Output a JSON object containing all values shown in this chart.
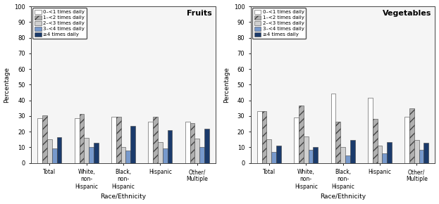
{
  "fruits": {
    "categories": [
      "Total",
      "White,\nnon-\nHispanic",
      "Black,\nnon-\nHispanic",
      "Hispanic",
      "Other/\nMultiple"
    ],
    "series": {
      "0-<1 times daily": [
        28.5,
        28.5,
        29.5,
        26.5,
        26.5
      ],
      "1-<2 times daily": [
        30.5,
        31.5,
        29.5,
        29.5,
        25.5
      ],
      "2-<3 times daily": [
        15.0,
        16.0,
        10.0,
        13.5,
        15.5
      ],
      "3-<4 times daily": [
        9.5,
        10.0,
        8.0,
        9.5,
        10.0
      ],
      ">=4 times daily": [
        16.5,
        13.0,
        23.5,
        21.0,
        22.0
      ]
    }
  },
  "vegetables": {
    "categories": [
      "Total",
      "White,\nnon-\nHispanic",
      "Black,\nnon-\nHispanic",
      "Hispanic",
      "Other/\nMultiple"
    ],
    "series": {
      "0-<1 times daily": [
        33.0,
        29.0,
        44.5,
        41.5,
        29.5
      ],
      "1-<2 times daily": [
        33.0,
        36.5,
        26.5,
        28.0,
        35.0
      ],
      "2-<3 times daily": [
        15.0,
        17.0,
        10.0,
        11.0,
        14.5
      ],
      "3-<4 times daily": [
        7.0,
        8.5,
        5.0,
        6.0,
        8.5
      ],
      ">=4 times daily": [
        11.0,
        10.0,
        14.5,
        13.5,
        13.0
      ]
    }
  },
  "legend_labels": [
    "0–<1 times daily",
    "1–<2 times daily",
    "2–<3 times daily",
    "3–<4 times daily",
    "≥4 times daily"
  ],
  "bar_styles": [
    {
      "facecolor": "#ffffff",
      "edgecolor": "#444444",
      "hatch": ""
    },
    {
      "facecolor": "#b0b0b0",
      "edgecolor": "#444444",
      "hatch": "///"
    },
    {
      "facecolor": "#d0d0d0",
      "edgecolor": "#444444",
      "hatch": ""
    },
    {
      "facecolor": "#7799cc",
      "edgecolor": "#444444",
      "hatch": ""
    },
    {
      "facecolor": "#1a3a6b",
      "edgecolor": "#444444",
      "hatch": ""
    }
  ],
  "ylim": [
    0,
    100
  ],
  "yticks": [
    0,
    10,
    20,
    30,
    40,
    50,
    60,
    70,
    80,
    90,
    100
  ],
  "ylabel": "Percentage",
  "xlabel": "Race/Ethnicity",
  "title_fruits": "Fruits",
  "title_vegetables": "Vegetables",
  "bar_width": 0.13,
  "figsize": [
    6.23,
    2.9
  ],
  "dpi": 100
}
